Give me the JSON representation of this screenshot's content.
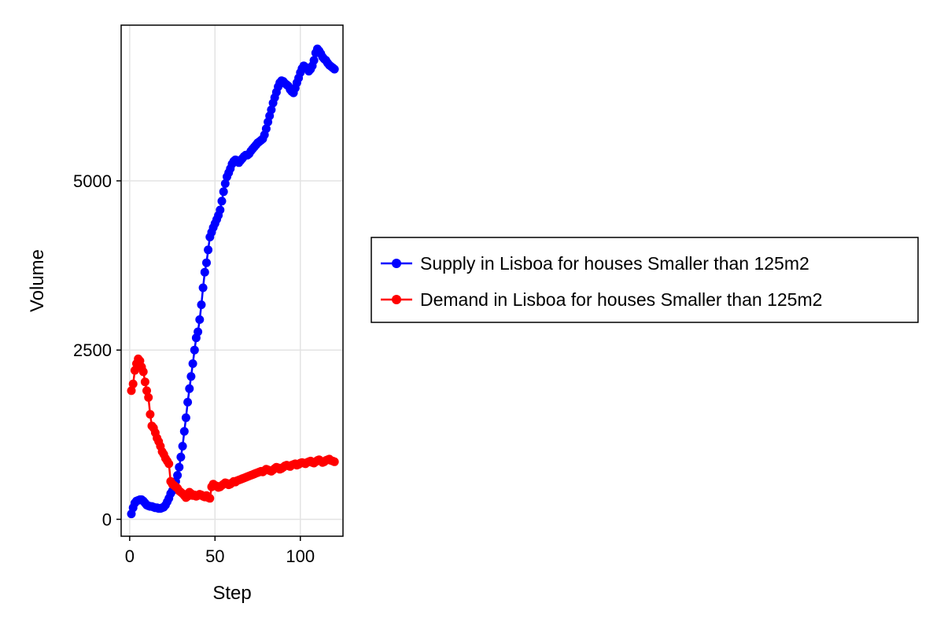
{
  "chart_data": {
    "type": "line",
    "xlabel": "Step",
    "ylabel": "Volume",
    "xlim": [
      -5,
      125
    ],
    "ylim": [
      -250,
      7300
    ],
    "xticks": [
      0,
      50,
      100
    ],
    "yticks": [
      0,
      2500,
      5000
    ],
    "grid": true,
    "legend_position": "right",
    "markers": true,
    "series": [
      {
        "name": "Supply in Lisboa for houses Smaller than 125m2",
        "color": "#0000ff",
        "x": [
          1,
          2,
          3,
          4,
          5,
          6,
          7,
          8,
          9,
          10,
          11,
          12,
          13,
          14,
          15,
          16,
          17,
          18,
          19,
          20,
          21,
          22,
          23,
          24,
          25,
          26,
          27,
          28,
          29,
          30,
          31,
          32,
          33,
          34,
          35,
          36,
          37,
          38,
          39,
          40,
          41,
          42,
          43,
          44,
          45,
          46,
          47,
          48,
          49,
          50,
          51,
          52,
          53,
          54,
          55,
          56,
          57,
          58,
          59,
          60,
          61,
          62,
          63,
          64,
          65,
          66,
          67,
          68,
          69,
          70,
          71,
          72,
          73,
          74,
          75,
          76,
          77,
          78,
          79,
          80,
          81,
          82,
          83,
          84,
          85,
          86,
          87,
          88,
          89,
          90,
          91,
          92,
          93,
          94,
          95,
          96,
          97,
          98,
          99,
          100,
          101,
          102,
          103,
          104,
          105,
          106,
          107,
          108,
          109,
          110,
          111,
          112,
          113,
          114,
          115,
          116,
          117,
          118,
          119,
          120
        ],
        "values": [
          80,
          170,
          240,
          270,
          280,
          290,
          290,
          270,
          240,
          210,
          200,
          190,
          190,
          180,
          170,
          170,
          160,
          160,
          170,
          180,
          210,
          260,
          310,
          380,
          420,
          470,
          560,
          650,
          770,
          920,
          1080,
          1300,
          1500,
          1730,
          1930,
          2110,
          2300,
          2500,
          2680,
          2770,
          2950,
          3170,
          3420,
          3650,
          3790,
          3980,
          4170,
          4240,
          4310,
          4370,
          4430,
          4490,
          4570,
          4700,
          4840,
          4960,
          5060,
          5120,
          5180,
          5250,
          5290,
          5310,
          5300,
          5270,
          5300,
          5330,
          5360,
          5380,
          5380,
          5400,
          5440,
          5470,
          5500,
          5530,
          5560,
          5580,
          5600,
          5620,
          5680,
          5770,
          5870,
          5960,
          6050,
          6150,
          6230,
          6310,
          6390,
          6450,
          6480,
          6470,
          6440,
          6420,
          6400,
          6350,
          6320,
          6300,
          6370,
          6450,
          6520,
          6600,
          6660,
          6700,
          6680,
          6660,
          6620,
          6650,
          6700,
          6780,
          6890,
          6950,
          6920,
          6880,
          6830,
          6800,
          6780,
          6740,
          6710,
          6690,
          6670,
          6650
        ]
      },
      {
        "name": "Demand in Lisboa for houses Smaller than 125m2",
        "color": "#ff0000",
        "x": [
          1,
          2,
          3,
          4,
          5,
          6,
          7,
          8,
          9,
          10,
          11,
          12,
          13,
          14,
          15,
          16,
          17,
          18,
          19,
          20,
          21,
          22,
          23,
          24,
          25,
          26,
          27,
          28,
          29,
          30,
          31,
          32,
          33,
          34,
          35,
          36,
          37,
          38,
          39,
          40,
          41,
          42,
          43,
          44,
          45,
          46,
          47,
          48,
          49,
          50,
          51,
          52,
          53,
          54,
          55,
          56,
          57,
          58,
          59,
          60,
          61,
          62,
          63,
          64,
          65,
          66,
          67,
          68,
          69,
          70,
          71,
          72,
          73,
          74,
          75,
          76,
          77,
          78,
          79,
          80,
          81,
          82,
          83,
          84,
          85,
          86,
          87,
          88,
          89,
          90,
          91,
          92,
          93,
          94,
          95,
          96,
          97,
          98,
          99,
          100,
          101,
          102,
          103,
          104,
          105,
          106,
          107,
          108,
          109,
          110,
          111,
          112,
          113,
          114,
          115,
          116,
          117,
          118,
          119,
          120
        ],
        "values": [
          1900,
          2000,
          2200,
          2300,
          2370,
          2340,
          2250,
          2180,
          2030,
          1900,
          1800,
          1550,
          1380,
          1350,
          1280,
          1200,
          1150,
          1080,
          1000,
          960,
          900,
          860,
          820,
          560,
          520,
          500,
          480,
          460,
          420,
          400,
          380,
          350,
          320,
          340,
          400,
          380,
          350,
          360,
          340,
          350,
          370,
          360,
          340,
          330,
          350,
          320,
          310,
          480,
          520,
          500,
          490,
          470,
          480,
          500,
          520,
          540,
          530,
          510,
          520,
          540,
          560,
          550,
          570,
          580,
          590,
          600,
          610,
          620,
          630,
          640,
          650,
          660,
          670,
          680,
          690,
          700,
          710,
          700,
          720,
          740,
          730,
          720,
          710,
          730,
          750,
          770,
          760,
          740,
          750,
          770,
          790,
          800,
          790,
          780,
          800,
          810,
          820,
          800,
          810,
          830,
          840,
          830,
          820,
          840,
          850,
          860,
          840,
          830,
          850,
          870,
          880,
          860,
          840,
          850,
          870,
          880,
          890,
          870,
          860,
          850
        ]
      }
    ]
  }
}
